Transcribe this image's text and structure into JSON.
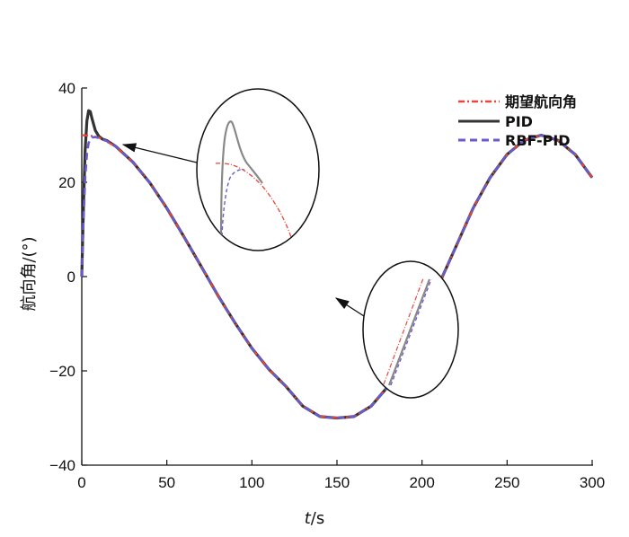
{
  "chart_data": {
    "type": "line",
    "xlabel_italic": "t",
    "xlabel_unit": "/s",
    "ylabel": "航向角/(°)",
    "xlim": [
      0,
      300
    ],
    "ylim": [
      -40,
      40
    ],
    "x_ticks": [
      "0",
      "50",
      "100",
      "150",
      "200",
      "250",
      "300"
    ],
    "y_ticks": [
      "40",
      "20",
      "0",
      "−20",
      "−40"
    ],
    "grid": false,
    "legend_position": "top-right",
    "series": [
      {
        "name": "期望航向角",
        "color": "#e8473a",
        "style": "dash-dot",
        "x": [
          0,
          5,
          10,
          20,
          30,
          40,
          50,
          60,
          70,
          80,
          90,
          100,
          110,
          120,
          130,
          140,
          150,
          160,
          170,
          180,
          190,
          200,
          210,
          220,
          230,
          240,
          250,
          260,
          270,
          280,
          290,
          300
        ],
        "y": [
          30,
          29.9,
          29.5,
          27.6,
          24.3,
          19.9,
          14.5,
          8.5,
          2.3,
          -4.0,
          -9.8,
          -15.2,
          -19.7,
          -23.3,
          -27.5,
          -29.7,
          -30,
          -29.7,
          -27.5,
          -23.3,
          -17.6,
          -10.3,
          -1.6,
          6.4,
          14.5,
          21.0,
          25.9,
          28.9,
          30,
          28.9,
          25.9,
          21.0
        ]
      },
      {
        "name": "PID",
        "color": "#333333",
        "style": "solid",
        "x": [
          0,
          1,
          2,
          3,
          4,
          5,
          6,
          8,
          10,
          12,
          15,
          20,
          30,
          40,
          50,
          60,
          70,
          80,
          90,
          100,
          110,
          120,
          130,
          140,
          150,
          160,
          170,
          180,
          190,
          200,
          210,
          220,
          230,
          240,
          250,
          260,
          270,
          280,
          290,
          300
        ],
        "y": [
          0,
          15,
          27,
          33,
          35.2,
          35,
          33.5,
          31,
          29.8,
          29.2,
          28.8,
          27.6,
          24.3,
          19.9,
          14.5,
          8.5,
          2.3,
          -4.0,
          -9.8,
          -15.2,
          -19.7,
          -23.3,
          -27.5,
          -29.7,
          -30,
          -29.7,
          -27.5,
          -23.3,
          -17.6,
          -10.3,
          -1.6,
          6.4,
          14.5,
          21.0,
          25.9,
          28.9,
          30,
          28.9,
          25.9,
          21.0
        ]
      },
      {
        "name": "RBF-PID",
        "color": "#6a5acd",
        "style": "dash",
        "x": [
          0,
          1,
          2,
          3,
          4,
          5,
          6,
          8,
          10,
          12,
          15,
          20,
          30,
          40,
          50,
          60,
          70,
          80,
          90,
          100,
          110,
          120,
          130,
          140,
          150,
          160,
          170,
          180,
          190,
          200,
          210,
          220,
          230,
          240,
          250,
          260,
          270,
          280,
          290,
          300
        ],
        "y": [
          0,
          12,
          21,
          26,
          28.3,
          29.2,
          29.5,
          29.6,
          29.4,
          29.1,
          28.7,
          27.6,
          24.3,
          19.9,
          14.5,
          8.5,
          2.3,
          -4.0,
          -9.8,
          -15.2,
          -19.7,
          -23.3,
          -27.5,
          -29.7,
          -30,
          -29.7,
          -27.5,
          -23.3,
          -17.6,
          -10.3,
          -1.6,
          6.4,
          14.5,
          21.0,
          25.9,
          28.9,
          30,
          28.9,
          25.9,
          21.0
        ]
      }
    ],
    "insets": [
      {
        "name": "initial-overshoot-zoom",
        "target_x": 25,
        "target_y": 28
      },
      {
        "name": "zero-crossing-zoom",
        "target_x": 150,
        "target_y": -5
      }
    ]
  }
}
